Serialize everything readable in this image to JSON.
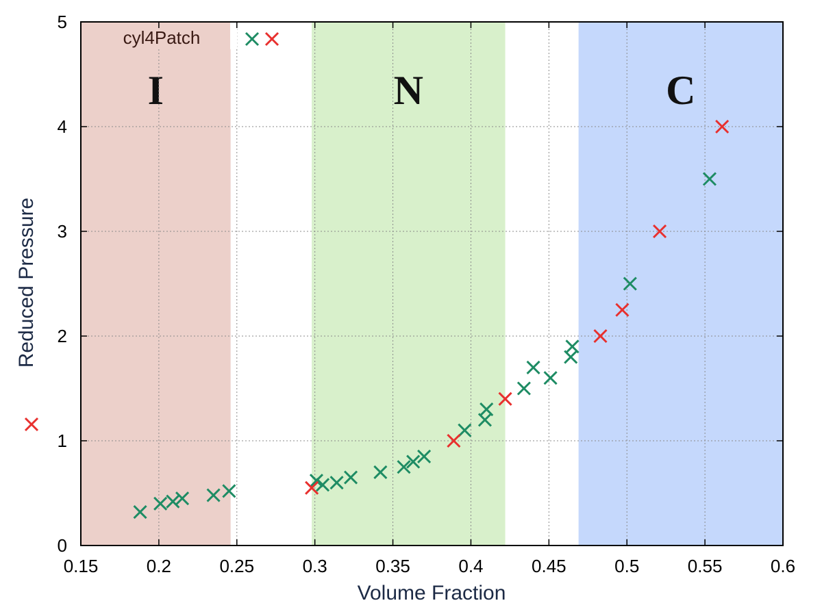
{
  "chart_data": {
    "type": "scatter",
    "title": "",
    "xlabel": "Volume Fraction",
    "ylabel": "Reduced Pressure",
    "xlim": [
      0.15,
      0.6
    ],
    "ylim": [
      0,
      5
    ],
    "x_ticks": [
      "0.15",
      "0.2",
      "0.25",
      "0.3",
      "0.35",
      "0.4",
      "0.45",
      "0.5",
      "0.55",
      "0.6"
    ],
    "y_ticks": [
      "0",
      "1",
      "2",
      "3",
      "4",
      "5"
    ],
    "grid": true,
    "legend": {
      "label": "cyl4Patch",
      "placement": "top-left"
    },
    "regions": [
      {
        "label": "I",
        "x_start": 0.15,
        "x_end": 0.246,
        "color": "#ecd0ca"
      },
      {
        "label": "N",
        "x_start": 0.298,
        "x_end": 0.422,
        "color": "#d8f0cb"
      },
      {
        "label": "C",
        "x_start": 0.469,
        "x_end": 0.6,
        "color": "#c5d8fc"
      }
    ],
    "series": [
      {
        "color": "#1e8c64",
        "points": [
          [
            0.188,
            0.32
          ],
          [
            0.201,
            0.4
          ],
          [
            0.209,
            0.42
          ],
          [
            0.215,
            0.45
          ],
          [
            0.235,
            0.48
          ],
          [
            0.245,
            0.52
          ],
          [
            0.301,
            0.62
          ],
          [
            0.305,
            0.58
          ],
          [
            0.314,
            0.6
          ],
          [
            0.323,
            0.65
          ],
          [
            0.342,
            0.7
          ],
          [
            0.357,
            0.75
          ],
          [
            0.363,
            0.8
          ],
          [
            0.37,
            0.85
          ],
          [
            0.396,
            1.1
          ],
          [
            0.409,
            1.2
          ],
          [
            0.41,
            1.3
          ],
          [
            0.434,
            1.5
          ],
          [
            0.44,
            1.7
          ],
          [
            0.451,
            1.6
          ],
          [
            0.464,
            1.8
          ],
          [
            0.465,
            1.9
          ],
          [
            0.502,
            2.5
          ],
          [
            0.553,
            3.5
          ]
        ]
      },
      {
        "color": "#e8302e",
        "points": [
          [
            0.298,
            0.55
          ],
          [
            0.389,
            1.0
          ],
          [
            0.422,
            1.4
          ],
          [
            0.483,
            2.0
          ],
          [
            0.497,
            2.25
          ],
          [
            0.521,
            3.0
          ],
          [
            0.561,
            4.0
          ]
        ]
      }
    ],
    "stray_marker": {
      "color": "#e8302e"
    }
  }
}
